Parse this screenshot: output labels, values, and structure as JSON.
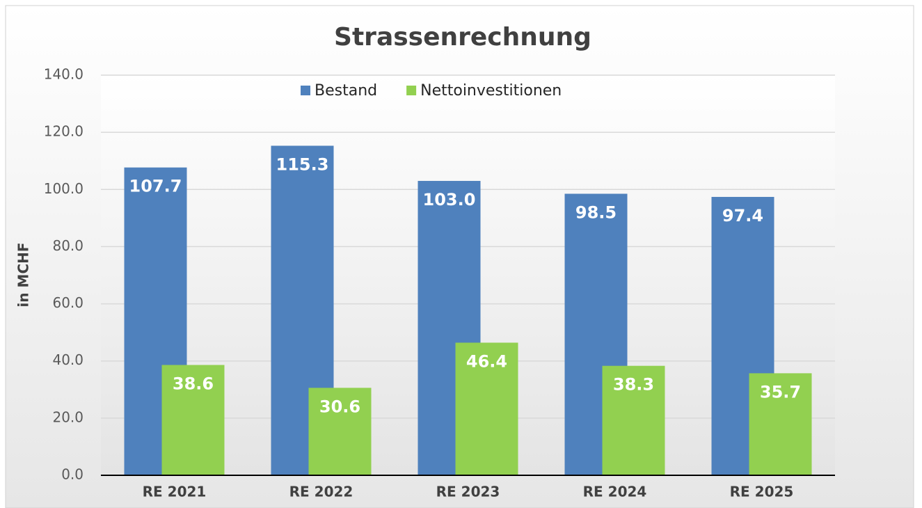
{
  "chart_data": {
    "type": "bar",
    "title": "Strassenrechnung",
    "y_label": "in MCHF",
    "categories": [
      "RE 2021",
      "RE 2022",
      "RE 2023",
      "RE 2024",
      "RE 2025"
    ],
    "series": [
      {
        "name": "Bestand",
        "color": "#4f81bd",
        "values": [
          107.7,
          115.3,
          103.0,
          98.5,
          97.4
        ],
        "value_labels": [
          "107.7",
          "115.3",
          "103.0",
          "98.5",
          "97.4"
        ]
      },
      {
        "name": "Nettoinvestitionen",
        "color": "#92d050",
        "values": [
          38.6,
          30.6,
          46.4,
          38.3,
          35.7
        ],
        "value_labels": [
          "38.6",
          "30.6",
          "46.4",
          "38.3",
          "35.7"
        ]
      }
    ],
    "ylim": [
      0,
      140
    ],
    "yticks": [
      {
        "value": 0,
        "label": "0.0"
      },
      {
        "value": 20,
        "label": "20.0"
      },
      {
        "value": 40,
        "label": "40.0"
      },
      {
        "value": 60,
        "label": "60.0"
      },
      {
        "value": 80,
        "label": "80.0"
      },
      {
        "value": 100,
        "label": "100.0"
      },
      {
        "value": 120,
        "label": "120.0"
      },
      {
        "value": 140,
        "label": "140.0"
      }
    ],
    "grid": true,
    "legend": "top"
  }
}
